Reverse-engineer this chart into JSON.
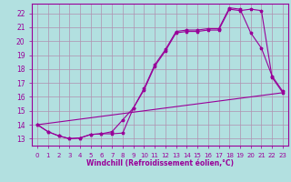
{
  "xlabel": "Windchill (Refroidissement éolien,°C)",
  "xlim": [
    -0.5,
    23.5
  ],
  "ylim": [
    12.5,
    22.7
  ],
  "yticks": [
    13,
    14,
    15,
    16,
    17,
    18,
    19,
    20,
    21,
    22
  ],
  "xticks": [
    0,
    1,
    2,
    3,
    4,
    5,
    6,
    7,
    8,
    9,
    10,
    11,
    12,
    13,
    14,
    15,
    16,
    17,
    18,
    19,
    20,
    21,
    22,
    23
  ],
  "bg_color": "#b2e0e0",
  "grid_color": "#b090b0",
  "line_color": "#990099",
  "curve1_x": [
    0,
    1,
    2,
    3,
    4,
    5,
    6,
    7,
    8,
    9,
    10,
    11,
    12,
    13,
    14,
    15,
    16,
    17,
    18,
    19,
    20,
    21,
    22,
    23
  ],
  "curve1_y": [
    14.0,
    13.5,
    13.2,
    13.0,
    13.05,
    13.3,
    13.35,
    13.35,
    13.4,
    15.2,
    16.5,
    18.2,
    19.3,
    20.6,
    20.7,
    20.7,
    20.8,
    20.8,
    22.3,
    22.2,
    22.3,
    22.2,
    17.4,
    16.3
  ],
  "curve2_x": [
    0,
    1,
    2,
    3,
    4,
    5,
    6,
    7,
    8,
    9,
    10,
    11,
    12,
    13,
    14,
    15,
    16,
    17,
    18,
    19,
    20,
    21,
    22,
    23
  ],
  "curve2_y": [
    14.0,
    13.5,
    13.2,
    13.0,
    13.05,
    13.3,
    13.35,
    13.5,
    14.35,
    15.2,
    16.6,
    18.3,
    19.4,
    20.7,
    20.8,
    20.8,
    20.9,
    20.9,
    22.4,
    22.3,
    20.6,
    19.5,
    17.5,
    16.4
  ],
  "curve3_x": [
    0,
    23
  ],
  "curve3_y": [
    14.0,
    16.3
  ]
}
